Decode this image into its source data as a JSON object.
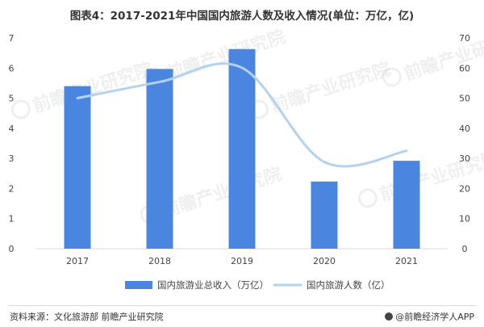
{
  "title": "图表4：2017-2021年中国国内旅游人数及收入情况(单位：万亿，亿)",
  "source": "资料来源：文化旅游部 前瞻产业研究院",
  "brand": "@前瞻经济学人APP",
  "watermark": "前瞻产业研究院",
  "chart_data": {
    "type": "bar",
    "categories": [
      "2017",
      "2018",
      "2019",
      "2020",
      "2021"
    ],
    "series": [
      {
        "name": "国内旅游业总收入（万亿）",
        "type": "bar",
        "axis": "left",
        "color": "#4a86e0",
        "values": [
          5.4,
          5.97,
          6.63,
          2.23,
          2.92
        ]
      },
      {
        "name": "国内旅游人数（亿）",
        "type": "line",
        "axis": "right",
        "color": "#b4d2ee",
        "values": [
          50,
          55.4,
          60.1,
          28.8,
          32.5
        ]
      }
    ],
    "y_left": {
      "min": 0,
      "max": 7,
      "ticks": [
        0,
        1,
        2,
        3,
        4,
        5,
        6,
        7
      ]
    },
    "y_right": {
      "min": 0,
      "max": 70,
      "ticks": [
        0,
        10,
        20,
        30,
        40,
        50,
        60,
        70
      ]
    },
    "grid": false,
    "legend_position": "bottom"
  }
}
